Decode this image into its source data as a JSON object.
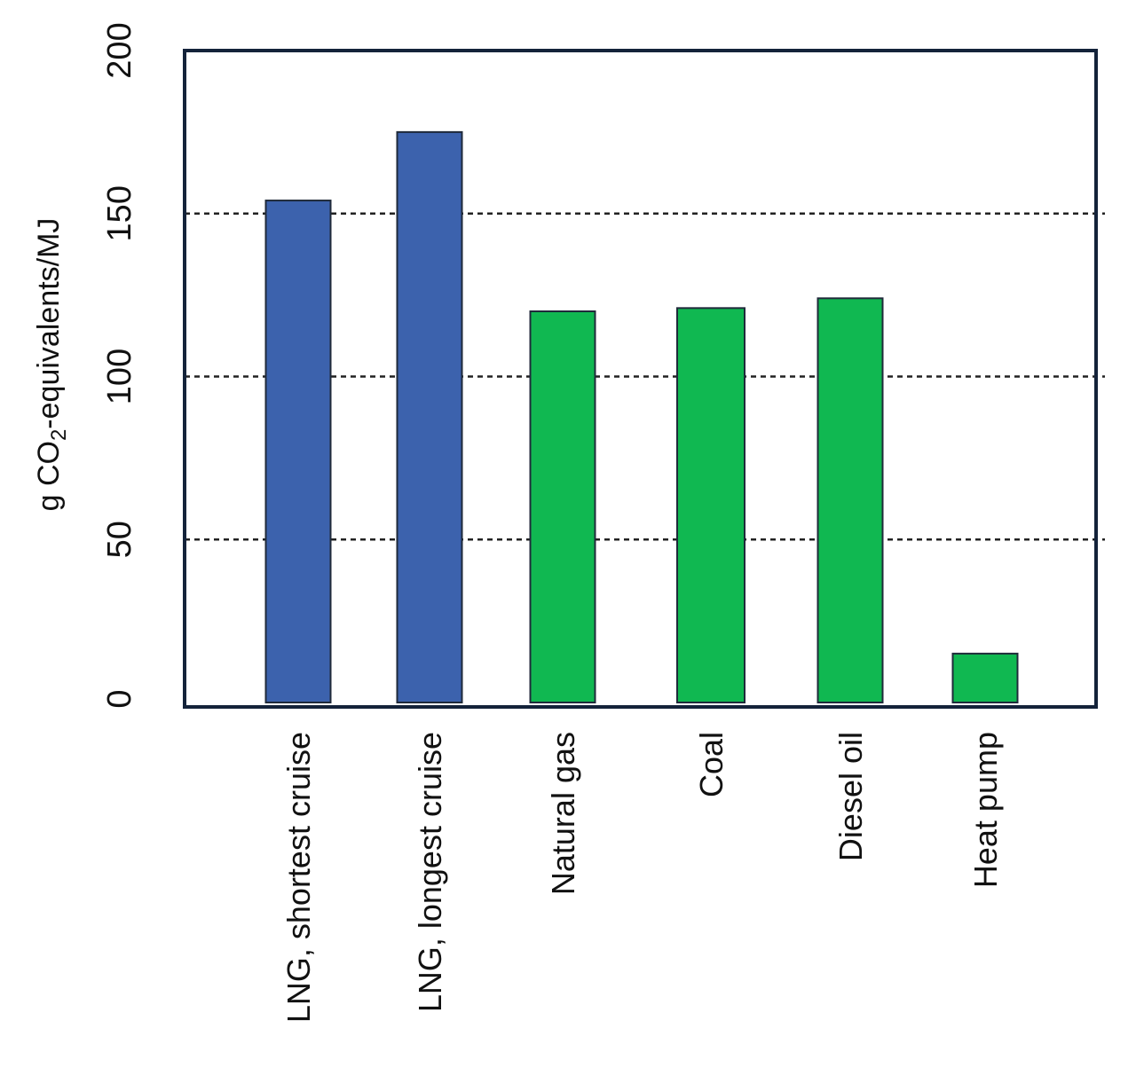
{
  "chart_data": {
    "type": "bar",
    "title": "",
    "xlabel": "",
    "ylabel": {
      "prefix": "g CO",
      "subscript": "2",
      "suffix": "-equivalents/MJ"
    },
    "ylim": [
      0,
      200
    ],
    "yticks": [
      "0",
      "50",
      "100",
      "150",
      "200"
    ],
    "grid": {
      "style": "dashed",
      "axis": "y",
      "values": [
        50,
        100,
        150
      ]
    },
    "categories": [
      "LNG, shortest cruise",
      "LNG, longest cruise",
      "Natural gas",
      "Coal",
      "Diesel oil",
      "Heat pump"
    ],
    "values": [
      154,
      175,
      120,
      121,
      124,
      15
    ],
    "bar_colors": [
      "#3c62ad",
      "#3c62ad",
      "#10b851",
      "#10b851",
      "#10b851",
      "#10b851"
    ],
    "frame_color": "#14233a"
  }
}
